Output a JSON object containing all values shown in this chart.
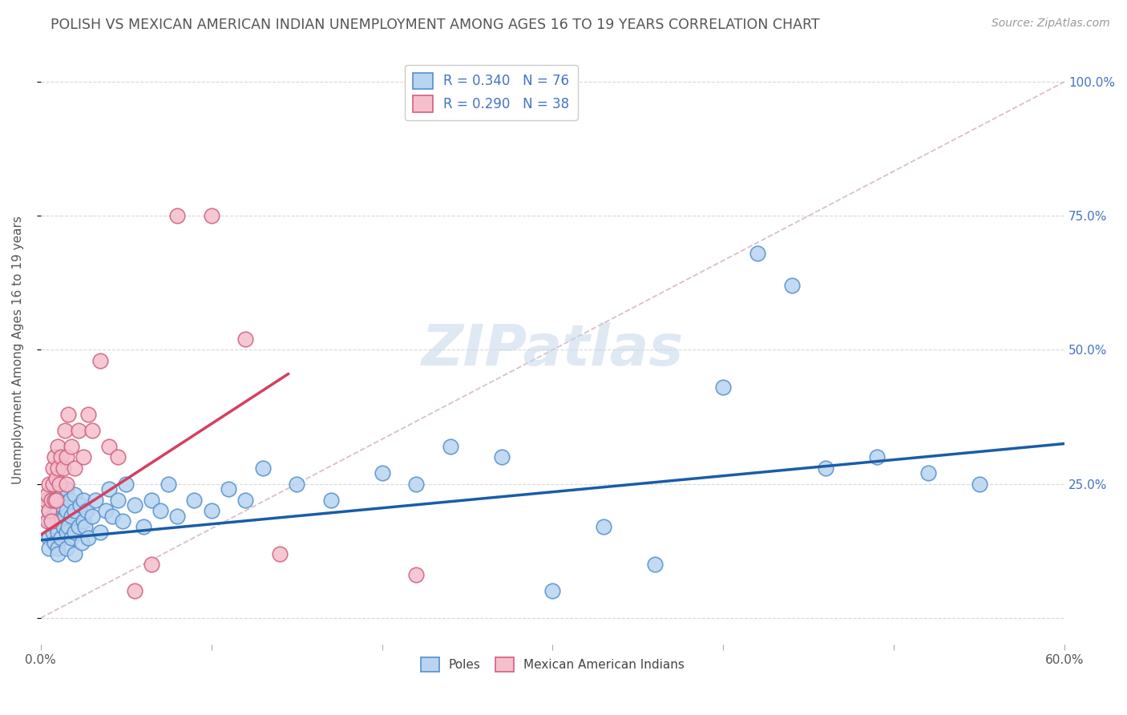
{
  "title": "POLISH VS MEXICAN AMERICAN INDIAN UNEMPLOYMENT AMONG AGES 16 TO 19 YEARS CORRELATION CHART",
  "source": "Source: ZipAtlas.com",
  "ylabel": "Unemployment Among Ages 16 to 19 years",
  "xlim": [
    0.0,
    0.6
  ],
  "ylim": [
    -0.05,
    1.05
  ],
  "yticks": [
    0.0,
    0.25,
    0.5,
    0.75,
    1.0
  ],
  "ytick_labels_right": [
    "",
    "25.0%",
    "50.0%",
    "75.0%",
    "100.0%"
  ],
  "xtick_labels": [
    "0.0%",
    "",
    "",
    "",
    "",
    "",
    "60.0%"
  ],
  "poles_color": "#b8d4f0",
  "poles_edge_color": "#5590cc",
  "mexican_color": "#f5bfcc",
  "mexican_edge_color": "#d06080",
  "trendline_poles_color": "#1a5ca8",
  "trendline_mexican_color": "#d44060",
  "diagonal_color": "#d0b0b8",
  "legend_label_poles": "R = 0.340   N = 76",
  "legend_label_mexican": "R = 0.290   N = 38",
  "watermark_text": "ZIPatlas",
  "background_color": "#ffffff",
  "title_color": "#555555",
  "source_color": "#999999",
  "ylabel_color": "#555555",
  "tick_label_color": "#4472c4",
  "grid_color": "#d8d8d8",
  "poles_trendline_x": [
    0.0,
    0.6
  ],
  "poles_trendline_y": [
    0.145,
    0.325
  ],
  "mexican_trendline_x": [
    0.0,
    0.145
  ],
  "mexican_trendline_y": [
    0.155,
    0.455
  ],
  "poles_x": [
    0.005,
    0.005,
    0.005,
    0.005,
    0.005,
    0.007,
    0.007,
    0.008,
    0.008,
    0.009,
    0.01,
    0.01,
    0.01,
    0.01,
    0.01,
    0.01,
    0.012,
    0.012,
    0.013,
    0.014,
    0.015,
    0.015,
    0.015,
    0.015,
    0.016,
    0.017,
    0.018,
    0.018,
    0.02,
    0.02,
    0.02,
    0.02,
    0.022,
    0.023,
    0.024,
    0.025,
    0.025,
    0.026,
    0.027,
    0.028,
    0.03,
    0.032,
    0.035,
    0.038,
    0.04,
    0.042,
    0.045,
    0.048,
    0.05,
    0.055,
    0.06,
    0.065,
    0.07,
    0.075,
    0.08,
    0.09,
    0.1,
    0.11,
    0.12,
    0.13,
    0.15,
    0.17,
    0.2,
    0.22,
    0.24,
    0.27,
    0.3,
    0.33,
    0.36,
    0.4,
    0.42,
    0.44,
    0.46,
    0.49,
    0.52,
    0.55
  ],
  "poles_y": [
    0.18,
    0.2,
    0.15,
    0.22,
    0.13,
    0.16,
    0.19,
    0.14,
    0.22,
    0.17,
    0.13,
    0.16,
    0.2,
    0.23,
    0.12,
    0.18,
    0.15,
    0.21,
    0.17,
    0.19,
    0.13,
    0.16,
    0.2,
    0.24,
    0.17,
    0.22,
    0.15,
    0.19,
    0.12,
    0.16,
    0.2,
    0.23,
    0.17,
    0.21,
    0.14,
    0.18,
    0.22,
    0.17,
    0.2,
    0.15,
    0.19,
    0.22,
    0.16,
    0.2,
    0.24,
    0.19,
    0.22,
    0.18,
    0.25,
    0.21,
    0.17,
    0.22,
    0.2,
    0.25,
    0.19,
    0.22,
    0.2,
    0.24,
    0.22,
    0.28,
    0.25,
    0.22,
    0.27,
    0.25,
    0.32,
    0.3,
    0.05,
    0.17,
    0.1,
    0.43,
    0.68,
    0.62,
    0.28,
    0.3,
    0.27,
    0.25
  ],
  "mexican_x": [
    0.003,
    0.004,
    0.004,
    0.005,
    0.005,
    0.006,
    0.006,
    0.007,
    0.007,
    0.008,
    0.008,
    0.009,
    0.009,
    0.01,
    0.01,
    0.011,
    0.012,
    0.013,
    0.014,
    0.015,
    0.015,
    0.016,
    0.018,
    0.02,
    0.022,
    0.025,
    0.028,
    0.03,
    0.035,
    0.04,
    0.045,
    0.055,
    0.065,
    0.08,
    0.1,
    0.12,
    0.14,
    0.22
  ],
  "mexican_y": [
    0.22,
    0.18,
    0.23,
    0.2,
    0.25,
    0.18,
    0.22,
    0.25,
    0.28,
    0.22,
    0.3,
    0.26,
    0.22,
    0.28,
    0.32,
    0.25,
    0.3,
    0.28,
    0.35,
    0.25,
    0.3,
    0.38,
    0.32,
    0.28,
    0.35,
    0.3,
    0.38,
    0.35,
    0.48,
    0.32,
    0.3,
    0.05,
    0.1,
    0.75,
    0.75,
    0.52,
    0.12,
    0.08
  ]
}
